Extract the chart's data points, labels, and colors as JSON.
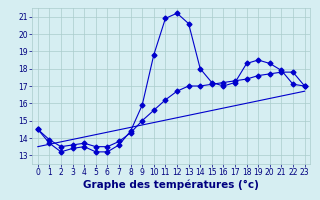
{
  "line1_x": [
    0,
    1,
    2,
    3,
    4,
    5,
    6,
    7,
    8,
    9,
    10,
    11,
    12,
    13,
    14,
    15,
    16,
    17,
    18,
    19,
    20,
    21,
    22,
    23
  ],
  "line1_y": [
    14.5,
    13.7,
    13.2,
    13.4,
    13.5,
    13.2,
    13.2,
    13.6,
    14.4,
    15.9,
    18.8,
    20.9,
    21.2,
    20.6,
    18.0,
    17.2,
    17.0,
    17.2,
    18.3,
    18.5,
    18.3,
    17.9,
    17.1,
    17.0
  ],
  "line2_x": [
    0,
    1,
    2,
    3,
    4,
    5,
    6,
    7,
    8,
    9,
    10,
    11,
    12,
    13,
    14,
    15,
    16,
    17,
    18,
    19,
    20,
    21,
    22,
    23
  ],
  "line2_y": [
    14.5,
    13.9,
    13.5,
    13.6,
    13.7,
    13.5,
    13.5,
    13.8,
    14.3,
    15.0,
    15.6,
    16.2,
    16.7,
    17.0,
    17.0,
    17.1,
    17.2,
    17.3,
    17.4,
    17.6,
    17.7,
    17.8,
    17.8,
    17.0
  ],
  "line3_x": [
    0,
    23
  ],
  "line3_y": [
    13.5,
    16.7
  ],
  "line_color": "#0000cc",
  "marker": "D",
  "markersize": 2.5,
  "bg_color": "#d6eef2",
  "grid_color": "#aacccc",
  "xlabel": "Graphe des températures (°c)",
  "xlabel_color": "#000080",
  "tick_color": "#000080",
  "ylim": [
    12.5,
    21.5
  ],
  "xlim": [
    -0.5,
    23.5
  ],
  "yticks": [
    13,
    14,
    15,
    16,
    17,
    18,
    19,
    20,
    21
  ],
  "xticks": [
    0,
    1,
    2,
    3,
    4,
    5,
    6,
    7,
    8,
    9,
    10,
    11,
    12,
    13,
    14,
    15,
    16,
    17,
    18,
    19,
    20,
    21,
    22,
    23
  ],
  "tick_fontsize": 5.5,
  "xlabel_fontsize": 7.5
}
